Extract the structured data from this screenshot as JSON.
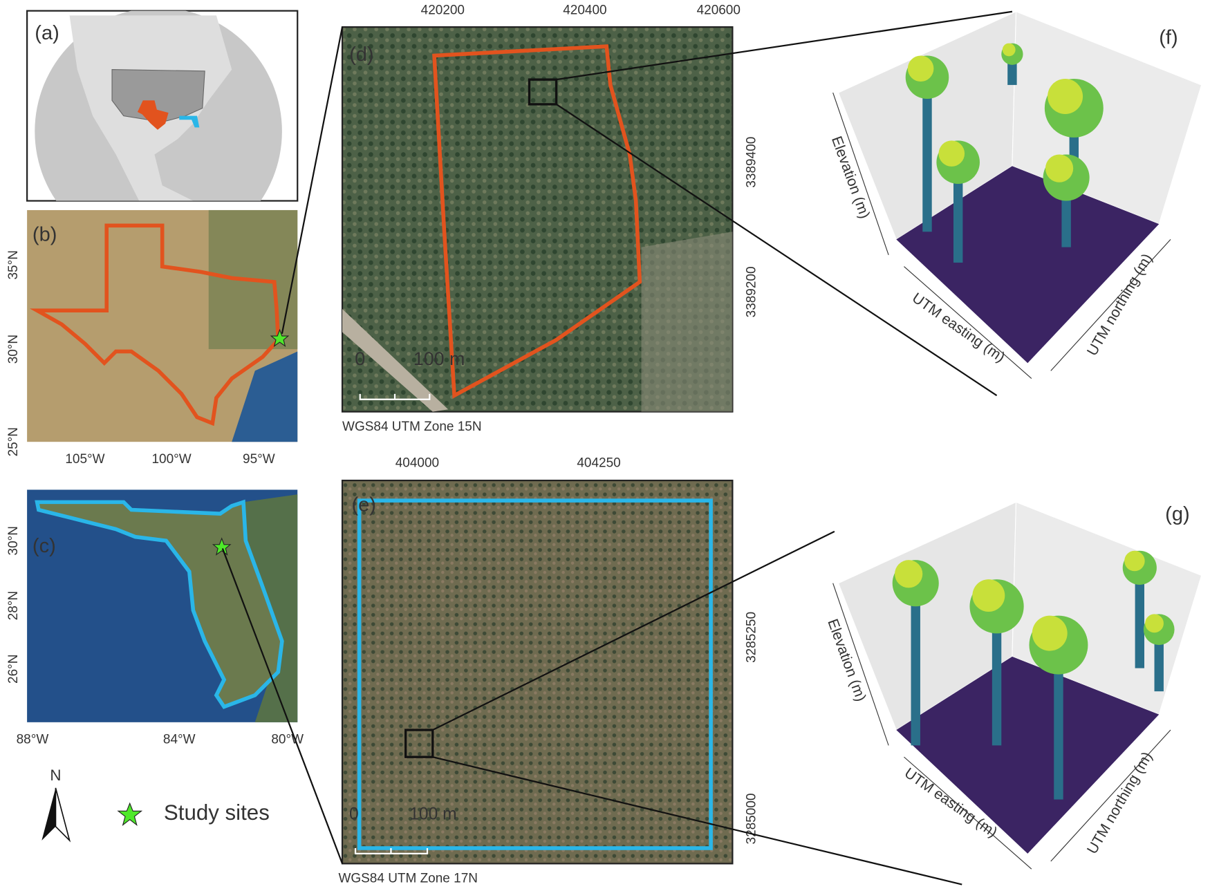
{
  "panel_a": {
    "label": "(a)"
  },
  "panel_b": {
    "label": "(b)",
    "y_ticks": [
      "35°N",
      "30°N",
      "25°N"
    ],
    "x_ticks": [
      "105°W",
      "100°W",
      "95°W"
    ]
  },
  "panel_c": {
    "label": "(c)",
    "y_ticks": [
      "30°N",
      "28°N",
      "26°N"
    ],
    "x_ticks": [
      "88°W",
      "84°W",
      "80°W"
    ]
  },
  "panel_d": {
    "label": "(d)",
    "top_ticks": [
      "420200",
      "420400",
      "420600"
    ],
    "right_ticks": [
      "3389400",
      "3389200"
    ],
    "scale_bar": [
      "0",
      "100 m"
    ],
    "projection": "WGS84 UTM Zone 15N"
  },
  "panel_e": {
    "label": "(e)",
    "top_ticks": [
      "404000",
      "404250"
    ],
    "right_ticks": [
      "3285250",
      "3285000"
    ],
    "scale_bar": [
      "0",
      "100 m"
    ],
    "projection": "WGS84 UTM Zone 17N"
  },
  "panel_f": {
    "label": "(f)",
    "axes": [
      "Elevation (m)",
      "UTM easting (m)",
      "UTM northing (m)"
    ]
  },
  "panel_g": {
    "label": "(g)",
    "axes": [
      "Elevation (m)",
      "UTM easting (m)",
      "UTM northing (m)"
    ]
  },
  "legend": {
    "north": "N",
    "study_sites": "Study sites"
  }
}
